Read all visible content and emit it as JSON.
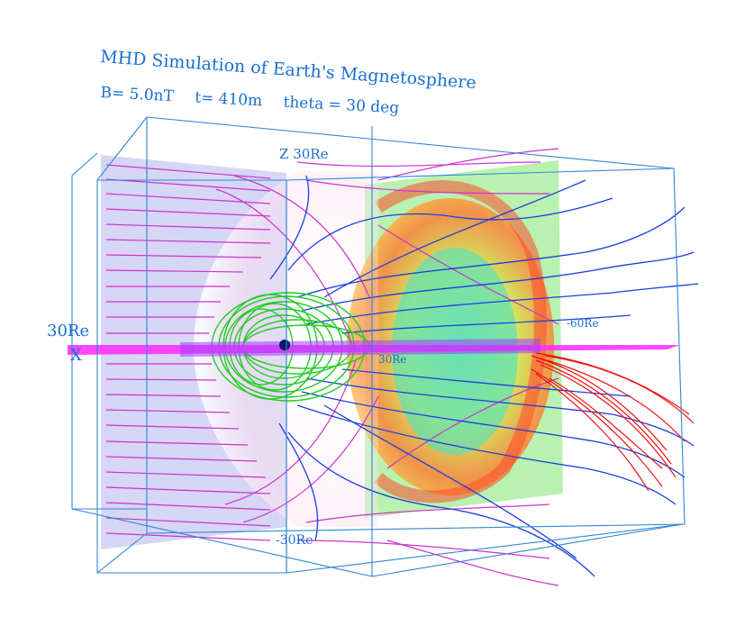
{
  "title": "MHD Simulation of Earth's Magnetosphere",
  "parameters": {
    "b_field": "B= 5.0nT",
    "time": "t= 410m",
    "theta": "theta =  30 deg"
  },
  "axis_labels": {
    "z_axis": "Z 30Re",
    "x_value": "30Re",
    "x_axis": "X",
    "tail": "-60Re",
    "z_negative": "-30Re",
    "y_value": "30Re"
  },
  "colors": {
    "box_lines": "#2f86d6",
    "solar_wind_lines": "#cc33cc",
    "closed_field": "#22cc22",
    "open_field": "#1a3fe0",
    "tail_field": "#ee1111",
    "equatorial_plane": "#ff33ff",
    "upstream_plane": "#c9c9f2",
    "earth": "#0a1a6a"
  }
}
